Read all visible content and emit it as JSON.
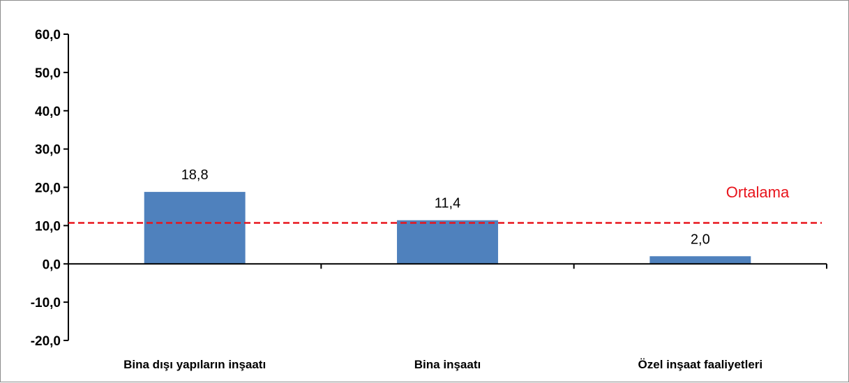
{
  "chart_data": {
    "type": "bar",
    "categories": [
      "Bina dışı yapıların inşaatı",
      "Bina inşaatı",
      "Özel inşaat faaliyetleri"
    ],
    "series": [
      {
        "values": [
          18.8,
          11.4,
          2.0
        ],
        "data_labels": [
          "18,8",
          "11,4",
          "2,0"
        ]
      }
    ],
    "reference_line": {
      "label": "Ortalama",
      "value": 10.7,
      "color": "#e8141c",
      "style": "dashed"
    },
    "ylim": [
      -20,
      60
    ],
    "yticks": [
      60,
      50,
      40,
      30,
      20,
      10,
      0,
      -10,
      -20
    ],
    "ytick_labels": [
      "60,0",
      "50,0",
      "40,0",
      "30,0",
      "20,0",
      "10,0",
      "0,0",
      "-10,0",
      "-20,0"
    ],
    "bar_color": "#4f81bd",
    "grid": false,
    "title": "",
    "xlabel": "",
    "ylabel": ""
  }
}
